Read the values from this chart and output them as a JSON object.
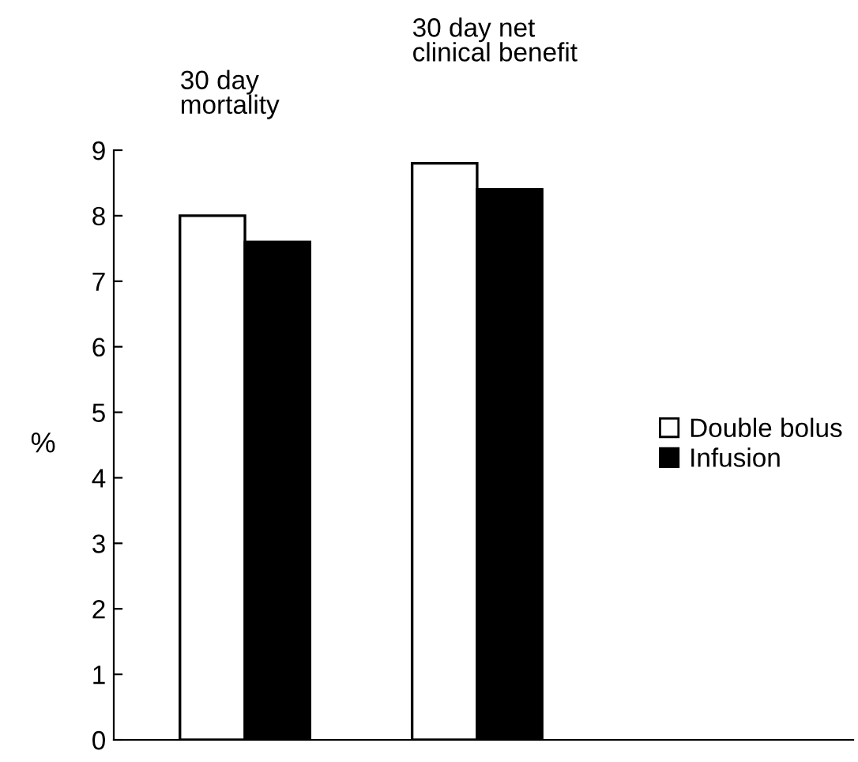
{
  "chart_data": {
    "type": "bar",
    "ylabel": "%",
    "categories": [
      null,
      null
    ],
    "annotations": [
      "30 day\nmortality",
      "30 day net\nclinical benefit"
    ],
    "series": [
      {
        "name": "Double bolus",
        "color": "#ffffff",
        "values": [
          8.0,
          8.8
        ]
      },
      {
        "name": "Infusion",
        "color": "#000000",
        "values": [
          7.6,
          8.4
        ]
      }
    ],
    "ylim": [
      0,
      9
    ],
    "yticks": [
      0,
      1,
      2,
      3,
      4,
      5,
      6,
      7,
      8,
      9
    ],
    "grid": false,
    "legend": "right"
  }
}
